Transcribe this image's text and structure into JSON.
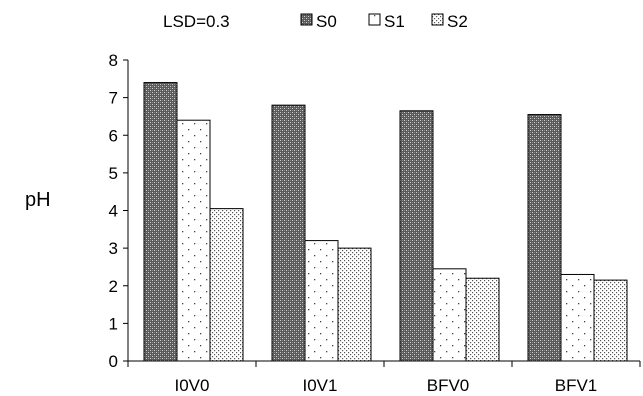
{
  "chart_data": {
    "type": "bar",
    "categories": [
      "I0V0",
      "I0V1",
      "BFV0",
      "BFV1"
    ],
    "series": [
      {
        "name": "S0",
        "values": [
          7.4,
          6.8,
          6.65,
          6.55
        ],
        "pattern": "dense-crosshatch"
      },
      {
        "name": "S1",
        "values": [
          6.4,
          3.2,
          2.45,
          2.3
        ],
        "pattern": "sparse-dots"
      },
      {
        "name": "S2",
        "values": [
          4.05,
          3.0,
          2.2,
          2.15
        ],
        "pattern": "dense-dots"
      }
    ],
    "annotation": "LSD=0.3",
    "xlabel": "",
    "ylabel": "pH",
    "ylim": [
      0,
      8
    ],
    "yticks": [
      "0",
      "1",
      "2",
      "3",
      "4",
      "5",
      "6",
      "7",
      "8"
    ],
    "legend_position": "top",
    "grid": false
  }
}
